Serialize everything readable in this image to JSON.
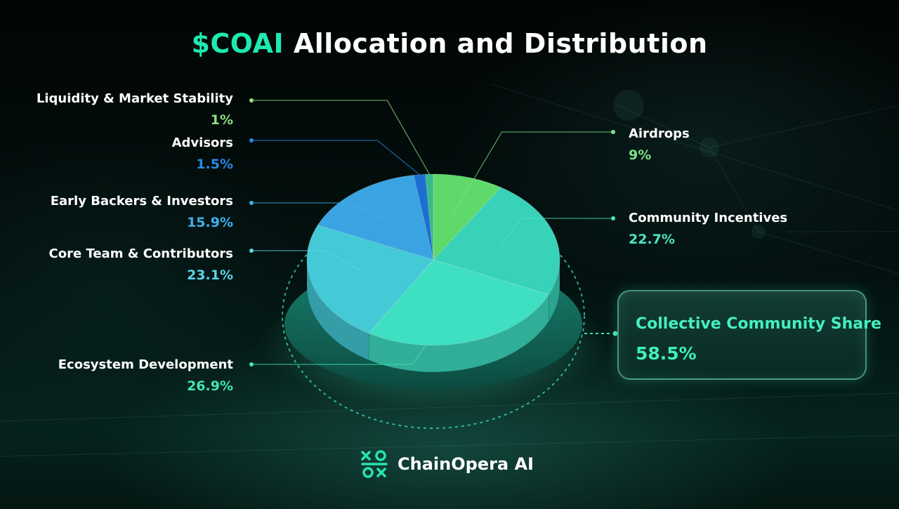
{
  "title": {
    "accent": "$COAI",
    "rest": "Allocation and Distribution"
  },
  "chart_data": {
    "type": "pie",
    "title": "$COAI Allocation and Distribution",
    "slices": [
      {
        "name": "Airdrops",
        "value": 9,
        "label": "9%",
        "color": "#5fd96a",
        "label_color": "#7fe08a"
      },
      {
        "name": "Community Incentives",
        "value": 22.7,
        "label": "22.7%",
        "color": "#37d2b8",
        "label_color": "#4de3c6"
      },
      {
        "name": "Ecosystem Development",
        "value": 26.9,
        "label": "26.9%",
        "color": "#3fdfc2",
        "label_color": "#3ee6b6"
      },
      {
        "name": "Core Team & Contributors",
        "value": 23.1,
        "label": "23.1%",
        "color": "#44c9d6",
        "label_color": "#5fd3e8"
      },
      {
        "name": "Early Backers & Investors",
        "value": 15.9,
        "label": "15.9%",
        "color": "#3aa4e2",
        "label_color": "#3fb1ee"
      },
      {
        "name": "Advisors",
        "value": 1.5,
        "label": "1.5%",
        "color": "#1c6fd0",
        "label_color": "#2a8ae6"
      },
      {
        "name": "Liquidity & Market Stability",
        "value": 1,
        "label": "1%",
        "color": "#39b98a",
        "label_color": "#8fe07a"
      }
    ],
    "highlight": {
      "name": "Collective Community Share",
      "value": 58.5,
      "label": "58.5%"
    }
  },
  "brand": {
    "name": "ChainOpera AI",
    "logo_icon": "chainopera-logo-icon"
  }
}
